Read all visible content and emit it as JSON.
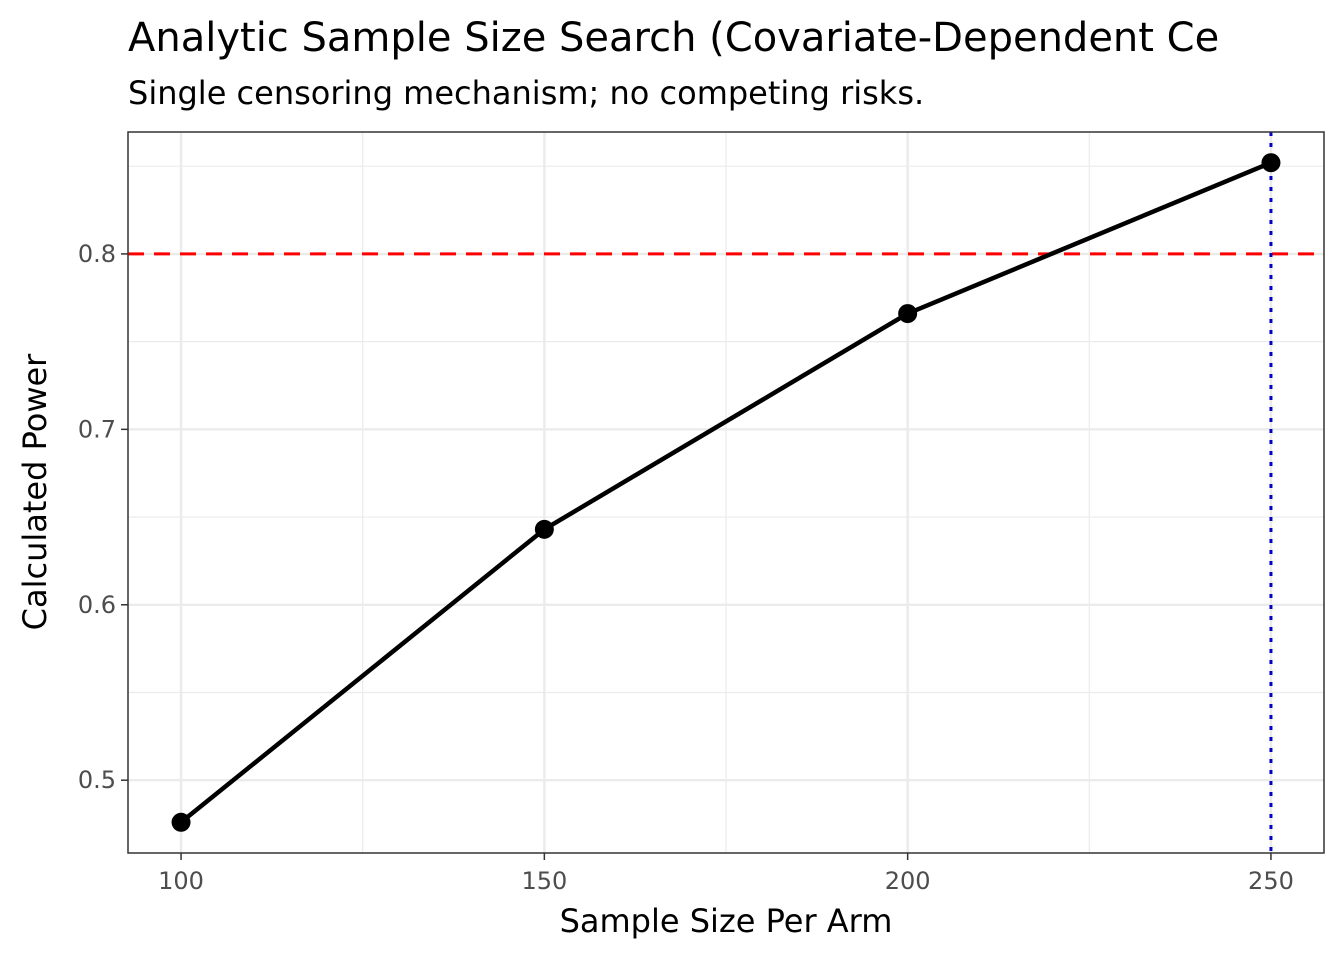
{
  "chart_data": {
    "type": "line",
    "title": "Analytic Sample Size Search (Covariate-Dependent Ce",
    "subtitle": "Single censoring mechanism; no competing risks.",
    "xlabel": "Sample Size Per Arm",
    "ylabel": "Calculated Power",
    "x": [
      100,
      150,
      200,
      250
    ],
    "y": [
      0.476,
      0.643,
      0.766,
      0.852
    ],
    "xlim": [
      92.7,
      257.3
    ],
    "ylim": [
      0.4585,
      0.8695
    ],
    "x_ticks": [
      100,
      150,
      200,
      250
    ],
    "x_tick_labels": [
      "100",
      "150",
      "200",
      "250"
    ],
    "x_minor_ticks": [
      125,
      175,
      225
    ],
    "y_ticks": [
      0.5,
      0.6,
      0.7,
      0.8
    ],
    "y_tick_labels": [
      "0.5",
      "0.6",
      "0.7",
      "0.8"
    ],
    "y_minor_ticks": [
      0.55,
      0.65,
      0.75,
      0.85
    ],
    "grid": true,
    "reference_lines": [
      {
        "orientation": "horizontal",
        "value": 0.8,
        "style": "dashed",
        "color": "#ff0000"
      },
      {
        "orientation": "vertical",
        "value": 250,
        "style": "dotted",
        "color": "#0000cd"
      }
    ],
    "colors": {
      "line": "#000000",
      "points": "#000000",
      "grid": "#ebebeb",
      "panel_border": "#333333"
    }
  }
}
